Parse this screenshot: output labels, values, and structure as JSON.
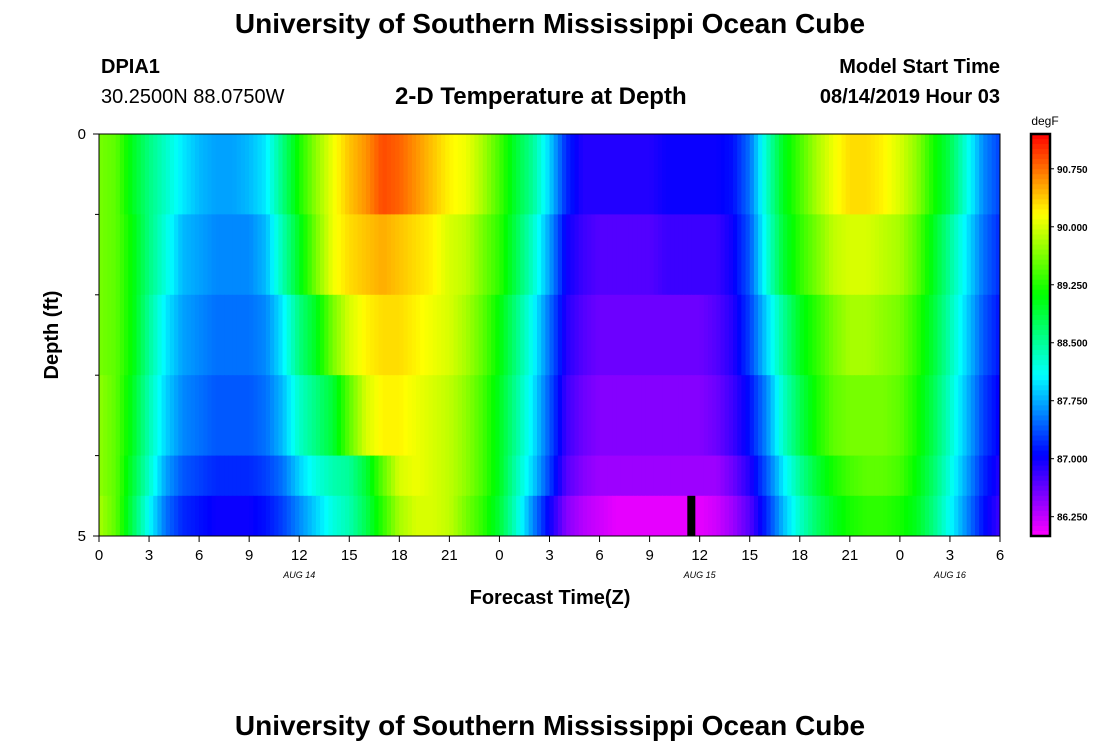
{
  "header": {
    "title": "University of Southern Mississippi Ocean Cube",
    "station": "DPIA1",
    "coordinates": "30.2500N 88.0750W",
    "subtitle": "2-D Temperature at Depth",
    "model_start_label": "Model Start Time",
    "model_start_value": "08/14/2019 Hour 03"
  },
  "footer": {
    "title": "University of Southern Mississippi Ocean Cube"
  },
  "chart_data": {
    "type": "heatmap",
    "title": "2-D Temperature at Depth",
    "xlabel": "Forecast Time(Z)",
    "ylabel": "Depth (ft)",
    "x_ticks": [
      "0",
      "3",
      "6",
      "9",
      "12",
      "15",
      "18",
      "21",
      "0",
      "3",
      "6",
      "9",
      "12",
      "15",
      "18",
      "21",
      "0",
      "3",
      "6"
    ],
    "date_labels": [
      {
        "label": "AUG 14",
        "hours_from_start": 12
      },
      {
        "label": "AUG 15",
        "hours_from_start": 36
      },
      {
        "label": "AUG 16",
        "hours_from_start": 51
      }
    ],
    "x_range_hours": [
      0,
      54
    ],
    "y_range_ft": [
      0,
      5
    ],
    "y_tick_labels": [
      "0",
      "5"
    ],
    "y_minor_ticks": [
      1,
      2,
      3,
      4
    ],
    "colorbar": {
      "units": "degF",
      "min": 86.0,
      "max": 91.2,
      "tick_values": [
        86.25,
        87.0,
        87.75,
        88.5,
        89.25,
        90.0,
        90.75
      ],
      "tick_labels": [
        "86.250",
        "87.000",
        "87.750",
        "88.500",
        "89.250",
        "90.000",
        "90.750"
      ]
    },
    "layer_depths_ft": [
      0.5,
      1.5,
      2.5,
      3.5,
      4.5
    ],
    "series": [
      {
        "name": "0.5 ft",
        "times": [
          0,
          1,
          2,
          3,
          4,
          5,
          6,
          7,
          8,
          9,
          10,
          11,
          12,
          13,
          14,
          15,
          16,
          17,
          18,
          19,
          20,
          21,
          22,
          23,
          24,
          25,
          26,
          27,
          28,
          29,
          30,
          31,
          32,
          33,
          34,
          35,
          36,
          37,
          38,
          39,
          40,
          41,
          42,
          43,
          44,
          45,
          46,
          47,
          48,
          49,
          50,
          51,
          52,
          53,
          54
        ],
        "values": [
          89.6,
          89.5,
          89.0,
          88.6,
          88.3,
          88.0,
          87.8,
          87.7,
          87.7,
          87.8,
          88.0,
          88.6,
          89.2,
          89.7,
          90.1,
          90.4,
          90.6,
          90.9,
          90.8,
          90.6,
          90.4,
          90.2,
          90.1,
          89.8,
          89.4,
          88.9,
          88.5,
          87.9,
          87.2,
          86.9,
          86.9,
          86.9,
          86.9,
          86.9,
          87.0,
          87.0,
          87.0,
          87.0,
          87.1,
          87.5,
          88.3,
          89.0,
          89.4,
          89.8,
          90.1,
          90.3,
          90.3,
          90.2,
          90.0,
          89.7,
          89.2,
          88.8,
          88.2,
          87.6,
          87.3
        ]
      },
      {
        "name": "1.5 ft",
        "times": [
          0,
          1,
          2,
          3,
          4,
          5,
          6,
          7,
          8,
          9,
          10,
          11,
          12,
          13,
          14,
          15,
          16,
          17,
          18,
          19,
          20,
          21,
          22,
          23,
          24,
          25,
          26,
          27,
          28,
          29,
          30,
          31,
          32,
          33,
          34,
          35,
          36,
          37,
          38,
          39,
          40,
          41,
          42,
          43,
          44,
          45,
          46,
          47,
          48,
          49,
          50,
          51,
          52,
          53,
          54
        ],
        "values": [
          89.6,
          89.5,
          89.1,
          88.6,
          88.2,
          87.8,
          87.7,
          87.6,
          87.6,
          87.6,
          87.8,
          88.4,
          89.0,
          89.6,
          90.1,
          90.3,
          90.4,
          90.5,
          90.4,
          90.3,
          90.2,
          90.0,
          89.9,
          89.6,
          89.3,
          88.8,
          88.3,
          87.7,
          87.0,
          86.8,
          86.7,
          86.7,
          86.7,
          86.7,
          86.8,
          86.8,
          86.8,
          86.8,
          87.0,
          87.4,
          88.2,
          88.9,
          89.3,
          89.6,
          89.9,
          90.0,
          90.0,
          89.9,
          89.8,
          89.5,
          89.0,
          88.5,
          88.0,
          87.5,
          87.2
        ]
      },
      {
        "name": "2.5 ft",
        "times": [
          0,
          1,
          2,
          3,
          4,
          5,
          6,
          7,
          8,
          9,
          10,
          11,
          12,
          13,
          14,
          15,
          16,
          17,
          18,
          19,
          20,
          21,
          22,
          23,
          24,
          25,
          26,
          27,
          28,
          29,
          30,
          31,
          32,
          33,
          34,
          35,
          36,
          37,
          38,
          39,
          40,
          41,
          42,
          43,
          44,
          45,
          46,
          47,
          48,
          49,
          50,
          51,
          52,
          53,
          54
        ],
        "values": [
          89.6,
          89.5,
          89.1,
          88.5,
          88.0,
          87.7,
          87.6,
          87.5,
          87.5,
          87.5,
          87.6,
          88.0,
          88.6,
          89.0,
          89.6,
          90.0,
          90.2,
          90.3,
          90.3,
          90.2,
          90.1,
          90.0,
          89.8,
          89.5,
          89.1,
          88.6,
          88.1,
          87.5,
          86.9,
          86.7,
          86.6,
          86.6,
          86.6,
          86.6,
          86.6,
          86.6,
          86.6,
          86.7,
          86.9,
          87.3,
          87.9,
          88.5,
          89.0,
          89.3,
          89.6,
          89.8,
          89.8,
          89.7,
          89.6,
          89.3,
          88.9,
          88.4,
          87.9,
          87.4,
          87.1
        ]
      },
      {
        "name": "3.5 ft",
        "times": [
          0,
          1,
          2,
          3,
          4,
          5,
          6,
          7,
          8,
          9,
          10,
          11,
          12,
          13,
          14,
          15,
          16,
          17,
          18,
          19,
          20,
          21,
          22,
          23,
          24,
          25,
          26,
          27,
          28,
          29,
          30,
          31,
          32,
          33,
          34,
          35,
          36,
          37,
          38,
          39,
          40,
          41,
          42,
          43,
          44,
          45,
          46,
          47,
          48,
          49,
          50,
          51,
          52,
          53,
          54
        ],
        "values": [
          89.7,
          89.5,
          89.0,
          88.4,
          87.9,
          87.6,
          87.5,
          87.4,
          87.4,
          87.4,
          87.5,
          87.8,
          88.3,
          88.6,
          88.9,
          89.5,
          90.0,
          90.2,
          90.2,
          90.1,
          90.0,
          89.9,
          89.7,
          89.4,
          89.0,
          88.5,
          88.0,
          87.4,
          86.8,
          86.6,
          86.5,
          86.5,
          86.5,
          86.5,
          86.5,
          86.5,
          86.5,
          86.6,
          86.8,
          87.1,
          87.6,
          88.3,
          88.8,
          89.2,
          89.5,
          89.6,
          89.6,
          89.6,
          89.5,
          89.2,
          88.8,
          88.3,
          87.8,
          87.3,
          87.0
        ]
      },
      {
        "name": "4.5 ft",
        "times": [
          0,
          1,
          2,
          3,
          4,
          5,
          6,
          7,
          8,
          9,
          10,
          11,
          12,
          13,
          14,
          15,
          16,
          17,
          18,
          19,
          20,
          21,
          22,
          23,
          24,
          25,
          26,
          27,
          28,
          29,
          30,
          31,
          32,
          33,
          34,
          35,
          36,
          37,
          38,
          39,
          40,
          41,
          42,
          43,
          44,
          45,
          46,
          47,
          48,
          49,
          50,
          51,
          52,
          53,
          54
        ],
        "values": [
          89.7,
          89.5,
          88.9,
          88.3,
          87.7,
          87.4,
          87.3,
          87.2,
          87.2,
          87.2,
          87.3,
          87.5,
          87.9,
          88.2,
          88.4,
          88.5,
          88.9,
          89.5,
          90.0,
          90.1,
          90.0,
          89.9,
          89.7,
          89.4,
          89.0,
          88.4,
          87.9,
          87.3,
          86.7,
          86.5,
          86.4,
          86.4,
          86.4,
          86.4,
          86.4,
          86.4,
          86.4,
          86.4,
          86.6,
          86.9,
          87.4,
          88.0,
          88.5,
          88.9,
          89.2,
          89.4,
          89.5,
          89.5,
          89.4,
          89.1,
          88.7,
          88.2,
          87.7,
          87.2,
          86.9
        ]
      },
      {
        "name": "5.0 ft",
        "times": [
          0,
          1,
          2,
          3,
          4,
          5,
          6,
          7,
          8,
          9,
          10,
          11,
          12,
          13,
          14,
          15,
          16,
          17,
          18,
          19,
          20,
          21,
          22,
          23,
          24,
          25,
          26,
          27,
          28,
          29,
          30,
          31,
          32,
          33,
          34,
          35,
          36,
          37,
          38,
          39,
          40,
          41,
          42,
          43,
          44,
          45,
          46,
          47,
          48,
          49,
          50,
          51,
          52,
          53,
          54
        ],
        "values": [
          89.8,
          89.5,
          88.8,
          88.1,
          87.5,
          87.2,
          87.1,
          87.0,
          87.0,
          87.0,
          87.1,
          87.3,
          87.6,
          87.9,
          88.2,
          88.4,
          88.8,
          89.3,
          89.8,
          90.0,
          90.0,
          89.9,
          89.6,
          89.3,
          88.9,
          88.3,
          87.6,
          87.0,
          86.5,
          86.3,
          86.2,
          86.1,
          86.1,
          86.1,
          86.1,
          86.1,
          86.1,
          86.2,
          86.4,
          86.7,
          87.2,
          87.8,
          88.3,
          88.7,
          89.0,
          89.2,
          89.3,
          89.3,
          89.2,
          89.0,
          88.6,
          88.1,
          87.6,
          87.1,
          86.8
        ]
      }
    ],
    "annotations": [
      {
        "type": "black-bar",
        "hours_from_start": 35.5,
        "depth_ft_from": 4.5,
        "depth_ft_to": 5.0
      }
    ]
  }
}
